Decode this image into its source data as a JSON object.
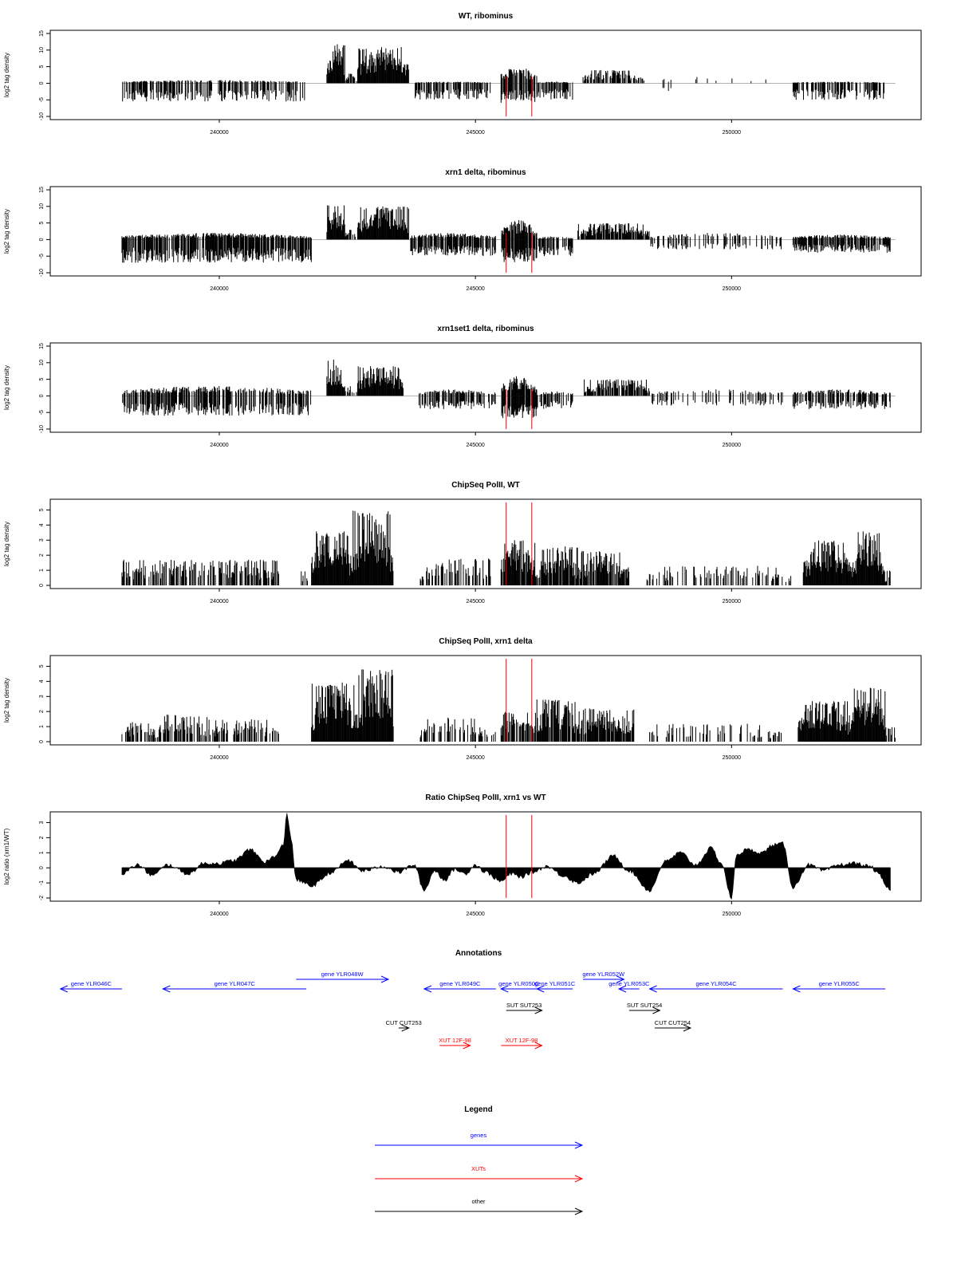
{
  "colors": {
    "bars": "#000000",
    "marker": "#ff0000",
    "gene": "#0000ff",
    "xut": "#ff0000",
    "other": "#000000",
    "frame": "#000000",
    "baseline": "#999999"
  },
  "chart_data": [
    {
      "type": "bar",
      "title": "WT, ribominus",
      "ylabel": "log2 tag density",
      "xlim": [
        236700,
        253700
      ],
      "ylim": [
        -10,
        15
      ],
      "yticks": [
        -10,
        -5,
        0,
        5,
        10,
        15
      ],
      "xticks": [
        240000,
        245000,
        250000
      ],
      "marker_lines": [
        245600,
        246100
      ],
      "segments": [
        {
          "start": 238100,
          "end": 241700,
          "lo": -5.5,
          "hi": 1,
          "density": 0.55
        },
        {
          "start": 242100,
          "end": 242450,
          "lo": 0,
          "hi": 12,
          "density": 1
        },
        {
          "start": 242450,
          "end": 242700,
          "lo": 0,
          "hi": 3,
          "density": 0.6
        },
        {
          "start": 242700,
          "end": 243700,
          "lo": 0,
          "hi": 11,
          "density": 1
        },
        {
          "start": 243800,
          "end": 245300,
          "lo": -5,
          "hi": 0.5,
          "density": 0.55
        },
        {
          "start": 245500,
          "end": 246200,
          "lo": -6,
          "hi": 5,
          "density": 0.8
        },
        {
          "start": 246200,
          "end": 246900,
          "lo": -5,
          "hi": 0.5,
          "density": 0.6
        },
        {
          "start": 247100,
          "end": 248300,
          "lo": 0,
          "hi": 4,
          "density": 0.7
        },
        {
          "start": 248300,
          "end": 249000,
          "lo": -2.5,
          "hi": 1.5,
          "density": 0.1
        },
        {
          "start": 249000,
          "end": 250800,
          "lo": 0,
          "hi": 2,
          "density": 0.05
        },
        {
          "start": 251200,
          "end": 253000,
          "lo": -5,
          "hi": 0.5,
          "density": 0.6
        }
      ]
    },
    {
      "type": "bar",
      "title": "xrn1 delta, ribominus",
      "ylabel": "log2 tag density",
      "xlim": [
        236700,
        253700
      ],
      "ylim": [
        -10,
        15
      ],
      "yticks": [
        -10,
        -5,
        0,
        5,
        10,
        15
      ],
      "xticks": [
        240000,
        245000,
        250000
      ],
      "marker_lines": [
        245600,
        246100
      ],
      "segments": [
        {
          "start": 238100,
          "end": 241800,
          "lo": -7,
          "hi": 2,
          "density": 0.8
        },
        {
          "start": 242100,
          "end": 242450,
          "lo": 0,
          "hi": 11,
          "density": 1
        },
        {
          "start": 242450,
          "end": 242700,
          "lo": 0,
          "hi": 3,
          "density": 0.6
        },
        {
          "start": 242700,
          "end": 243700,
          "lo": 0,
          "hi": 10,
          "density": 1
        },
        {
          "start": 243700,
          "end": 245400,
          "lo": -5,
          "hi": 2,
          "density": 0.75
        },
        {
          "start": 245500,
          "end": 246200,
          "lo": -7,
          "hi": 6,
          "density": 0.9
        },
        {
          "start": 246200,
          "end": 246900,
          "lo": -5,
          "hi": 1,
          "density": 0.7
        },
        {
          "start": 247000,
          "end": 248400,
          "lo": 0,
          "hi": 5,
          "density": 0.85
        },
        {
          "start": 248400,
          "end": 251000,
          "lo": -3,
          "hi": 2,
          "density": 0.3
        },
        {
          "start": 251200,
          "end": 253100,
          "lo": -4,
          "hi": 1.5,
          "density": 0.7
        }
      ]
    },
    {
      "type": "bar",
      "title": "xrn1set1 delta, ribominus",
      "ylabel": "log2 tag density",
      "xlim": [
        236700,
        253700
      ],
      "ylim": [
        -10,
        15
      ],
      "yticks": [
        -10,
        -5,
        0,
        5,
        10,
        15
      ],
      "xticks": [
        240000,
        245000,
        250000
      ],
      "marker_lines": [
        245600,
        246100
      ],
      "segments": [
        {
          "start": 238100,
          "end": 241800,
          "lo": -6,
          "hi": 3,
          "density": 0.6
        },
        {
          "start": 242100,
          "end": 242450,
          "lo": 0,
          "hi": 11,
          "density": 1
        },
        {
          "start": 242450,
          "end": 242700,
          "lo": 0,
          "hi": 3,
          "density": 0.6
        },
        {
          "start": 242700,
          "end": 243600,
          "lo": 0,
          "hi": 9,
          "density": 1
        },
        {
          "start": 243900,
          "end": 245400,
          "lo": -4,
          "hi": 2,
          "density": 0.5
        },
        {
          "start": 245500,
          "end": 246200,
          "lo": -7,
          "hi": 6,
          "density": 0.85
        },
        {
          "start": 246200,
          "end": 246900,
          "lo": -4,
          "hi": 1.5,
          "density": 0.55
        },
        {
          "start": 247100,
          "end": 248400,
          "lo": 0,
          "hi": 5,
          "density": 0.8
        },
        {
          "start": 248400,
          "end": 251000,
          "lo": -3,
          "hi": 2,
          "density": 0.35
        },
        {
          "start": 251200,
          "end": 253100,
          "lo": -4,
          "hi": 2,
          "density": 0.6
        }
      ]
    },
    {
      "type": "bar",
      "title": "ChipSeq PolII, WT",
      "ylabel": "log2 tag density",
      "xlim": [
        236700,
        253700
      ],
      "ylim": [
        0,
        5.5
      ],
      "yticks": [
        0,
        1,
        2,
        3,
        4,
        5
      ],
      "xticks": [
        240000,
        245000,
        250000
      ],
      "marker_lines": [
        245600,
        246100
      ],
      "segments": [
        {
          "start": 238100,
          "end": 241200,
          "lo": 0,
          "hi": 1.7,
          "density": 0.55
        },
        {
          "start": 241600,
          "end": 241800,
          "lo": 0,
          "hi": 1,
          "density": 0.3
        },
        {
          "start": 241800,
          "end": 242600,
          "lo": 0,
          "hi": 3.6,
          "density": 1
        },
        {
          "start": 242600,
          "end": 243400,
          "lo": 0,
          "hi": 5,
          "density": 1
        },
        {
          "start": 243900,
          "end": 245300,
          "lo": 0,
          "hi": 1.8,
          "density": 0.55
        },
        {
          "start": 245500,
          "end": 246200,
          "lo": 0,
          "hi": 3,
          "density": 0.9
        },
        {
          "start": 246200,
          "end": 247000,
          "lo": 0,
          "hi": 2.6,
          "density": 0.9
        },
        {
          "start": 247000,
          "end": 248000,
          "lo": 0,
          "hi": 2.3,
          "density": 0.85
        },
        {
          "start": 248300,
          "end": 251200,
          "lo": 0,
          "hi": 1.3,
          "density": 0.3
        },
        {
          "start": 251400,
          "end": 252400,
          "lo": 0,
          "hi": 3,
          "density": 1
        },
        {
          "start": 252400,
          "end": 253000,
          "lo": 0,
          "hi": 3.6,
          "density": 1
        },
        {
          "start": 253000,
          "end": 253200,
          "lo": 0,
          "hi": 1,
          "density": 0.5
        }
      ]
    },
    {
      "type": "bar",
      "title": "ChipSeq PolII, xrn1 delta",
      "ylabel": "log2 tag density",
      "xlim": [
        236700,
        253700
      ],
      "ylim": [
        0,
        5.5
      ],
      "yticks": [
        0,
        1,
        2,
        3,
        4,
        5
      ],
      "xticks": [
        240000,
        245000,
        250000
      ],
      "marker_lines": [
        245600,
        246100
      ],
      "segments": [
        {
          "start": 238100,
          "end": 238800,
          "lo": 0,
          "hi": 1.3,
          "density": 0.5
        },
        {
          "start": 238800,
          "end": 239800,
          "lo": 0,
          "hi": 1.8,
          "density": 0.6
        },
        {
          "start": 239800,
          "end": 241200,
          "lo": 0,
          "hi": 1.5,
          "density": 0.45
        },
        {
          "start": 241800,
          "end": 242700,
          "lo": 0,
          "hi": 4,
          "density": 1
        },
        {
          "start": 242700,
          "end": 243400,
          "lo": 0,
          "hi": 4.8,
          "density": 1
        },
        {
          "start": 243900,
          "end": 245400,
          "lo": 0,
          "hi": 1.6,
          "density": 0.45
        },
        {
          "start": 245500,
          "end": 246200,
          "lo": 0,
          "hi": 2,
          "density": 0.85
        },
        {
          "start": 246200,
          "end": 247000,
          "lo": 0,
          "hi": 2.8,
          "density": 0.9
        },
        {
          "start": 247000,
          "end": 248100,
          "lo": 0,
          "hi": 2.2,
          "density": 0.85
        },
        {
          "start": 248400,
          "end": 251000,
          "lo": 0,
          "hi": 1.2,
          "density": 0.3
        },
        {
          "start": 251300,
          "end": 252300,
          "lo": 0,
          "hi": 2.7,
          "density": 1
        },
        {
          "start": 252300,
          "end": 253000,
          "lo": 0,
          "hi": 3.6,
          "density": 1
        },
        {
          "start": 253000,
          "end": 253200,
          "lo": 0,
          "hi": 1,
          "density": 0.5
        }
      ]
    },
    {
      "type": "area",
      "title": "Ratio ChipSeq PolII, xrn1 vs WT",
      "ylabel": "log2 ratio (xrn1/WT)",
      "xlim": [
        236700,
        253700
      ],
      "ylim": [
        -2,
        3.5
      ],
      "yticks": [
        -2,
        -1,
        0,
        1,
        2,
        3
      ],
      "xticks": [
        240000,
        245000,
        250000
      ],
      "marker_lines": [
        245600,
        246100
      ],
      "x": [
        238100,
        238400,
        238700,
        239000,
        239400,
        239700,
        240000,
        240300,
        240600,
        240900,
        241100,
        241250,
        241320,
        241400,
        241500,
        241800,
        242200,
        242500,
        242800,
        243200,
        243500,
        243800,
        244000,
        244200,
        244400,
        244600,
        244800,
        245000,
        245200,
        245500,
        245700,
        245900,
        246100,
        246400,
        246700,
        247000,
        247300,
        247700,
        248000,
        248400,
        248700,
        249000,
        249300,
        249600,
        249800,
        250000,
        250100,
        250300,
        250600,
        250800,
        251000,
        251200,
        251500,
        251800,
        252100,
        252400,
        252700,
        252900,
        253000,
        253100
      ],
      "y": [
        -0.4,
        0.2,
        -0.5,
        0.2,
        -0.4,
        0.3,
        0.3,
        0.5,
        1.2,
        0.4,
        0.8,
        1.5,
        3.6,
        2.0,
        -0.8,
        -1.2,
        -0.3,
        0.5,
        -0.2,
        0.1,
        -0.3,
        0.2,
        -1.5,
        -0.2,
        -0.8,
        -0.1,
        -0.4,
        0.2,
        -0.3,
        -0.9,
        -0.4,
        -0.6,
        -0.3,
        0.1,
        -0.5,
        -1.0,
        -0.4,
        0.8,
        -0.2,
        -1.5,
        0.4,
        1.0,
        0.2,
        1.3,
        0.3,
        -2.0,
        0.9,
        1.2,
        1.0,
        1.5,
        1.6,
        -1.3,
        0.2,
        -0.2,
        0.2,
        0.3,
        0.1,
        -0.5,
        -1.2,
        -1.5
      ]
    }
  ],
  "annotations": {
    "title": "Annotations",
    "xlim": [
      236700,
      253700
    ],
    "items": [
      {
        "label": "gene YLR046C",
        "start": 238100,
        "end": 236900,
        "row": 0,
        "kind": "gene"
      },
      {
        "label": "gene YLR047C",
        "start": 241700,
        "end": 238900,
        "row": 0,
        "kind": "gene"
      },
      {
        "label": "gene YLR048W",
        "start": 241500,
        "end": 243300,
        "row": -1,
        "kind": "gene"
      },
      {
        "label": "gene YLR049C",
        "start": 245400,
        "end": 244000,
        "row": 0,
        "kind": "gene"
      },
      {
        "label": "gene YLR050C",
        "start": 246200,
        "end": 245500,
        "row": 0,
        "kind": "gene"
      },
      {
        "label": "gene YLR051C",
        "start": 246900,
        "end": 246200,
        "row": 0,
        "kind": "gene"
      },
      {
        "label": "gene YLR052W",
        "start": 247100,
        "end": 247900,
        "row": -1,
        "kind": "gene"
      },
      {
        "label": "gene YLR053C",
        "start": 248200,
        "end": 247800,
        "row": 0,
        "kind": "gene"
      },
      {
        "label": "gene YLR054C",
        "start": 251000,
        "end": 248400,
        "row": 0,
        "kind": "gene"
      },
      {
        "label": "gene YLR055C",
        "start": 253000,
        "end": 251200,
        "row": 0,
        "kind": "gene"
      },
      {
        "label": "SUT SUT253",
        "start": 245600,
        "end": 246300,
        "row": 1,
        "kind": "other"
      },
      {
        "label": "SUT SUT254",
        "start": 248000,
        "end": 248600,
        "row": 1,
        "kind": "other"
      },
      {
        "label": "CUT CUT253",
        "start": 243500,
        "end": 243700,
        "row": 2,
        "kind": "other"
      },
      {
        "label": "CUT CUT254",
        "start": 248500,
        "end": 249200,
        "row": 2,
        "kind": "other"
      },
      {
        "label": "XUT 12F-98",
        "start": 244300,
        "end": 244900,
        "row": 3,
        "kind": "xut"
      },
      {
        "label": "XUT 12F-98",
        "start": 245500,
        "end": 246300,
        "row": 3,
        "kind": "xut"
      }
    ]
  },
  "legend": {
    "title": "Legend",
    "items": [
      {
        "label": "genes",
        "kind": "gene"
      },
      {
        "label": "XUTs",
        "kind": "xut"
      },
      {
        "label": "other",
        "kind": "other"
      }
    ]
  }
}
